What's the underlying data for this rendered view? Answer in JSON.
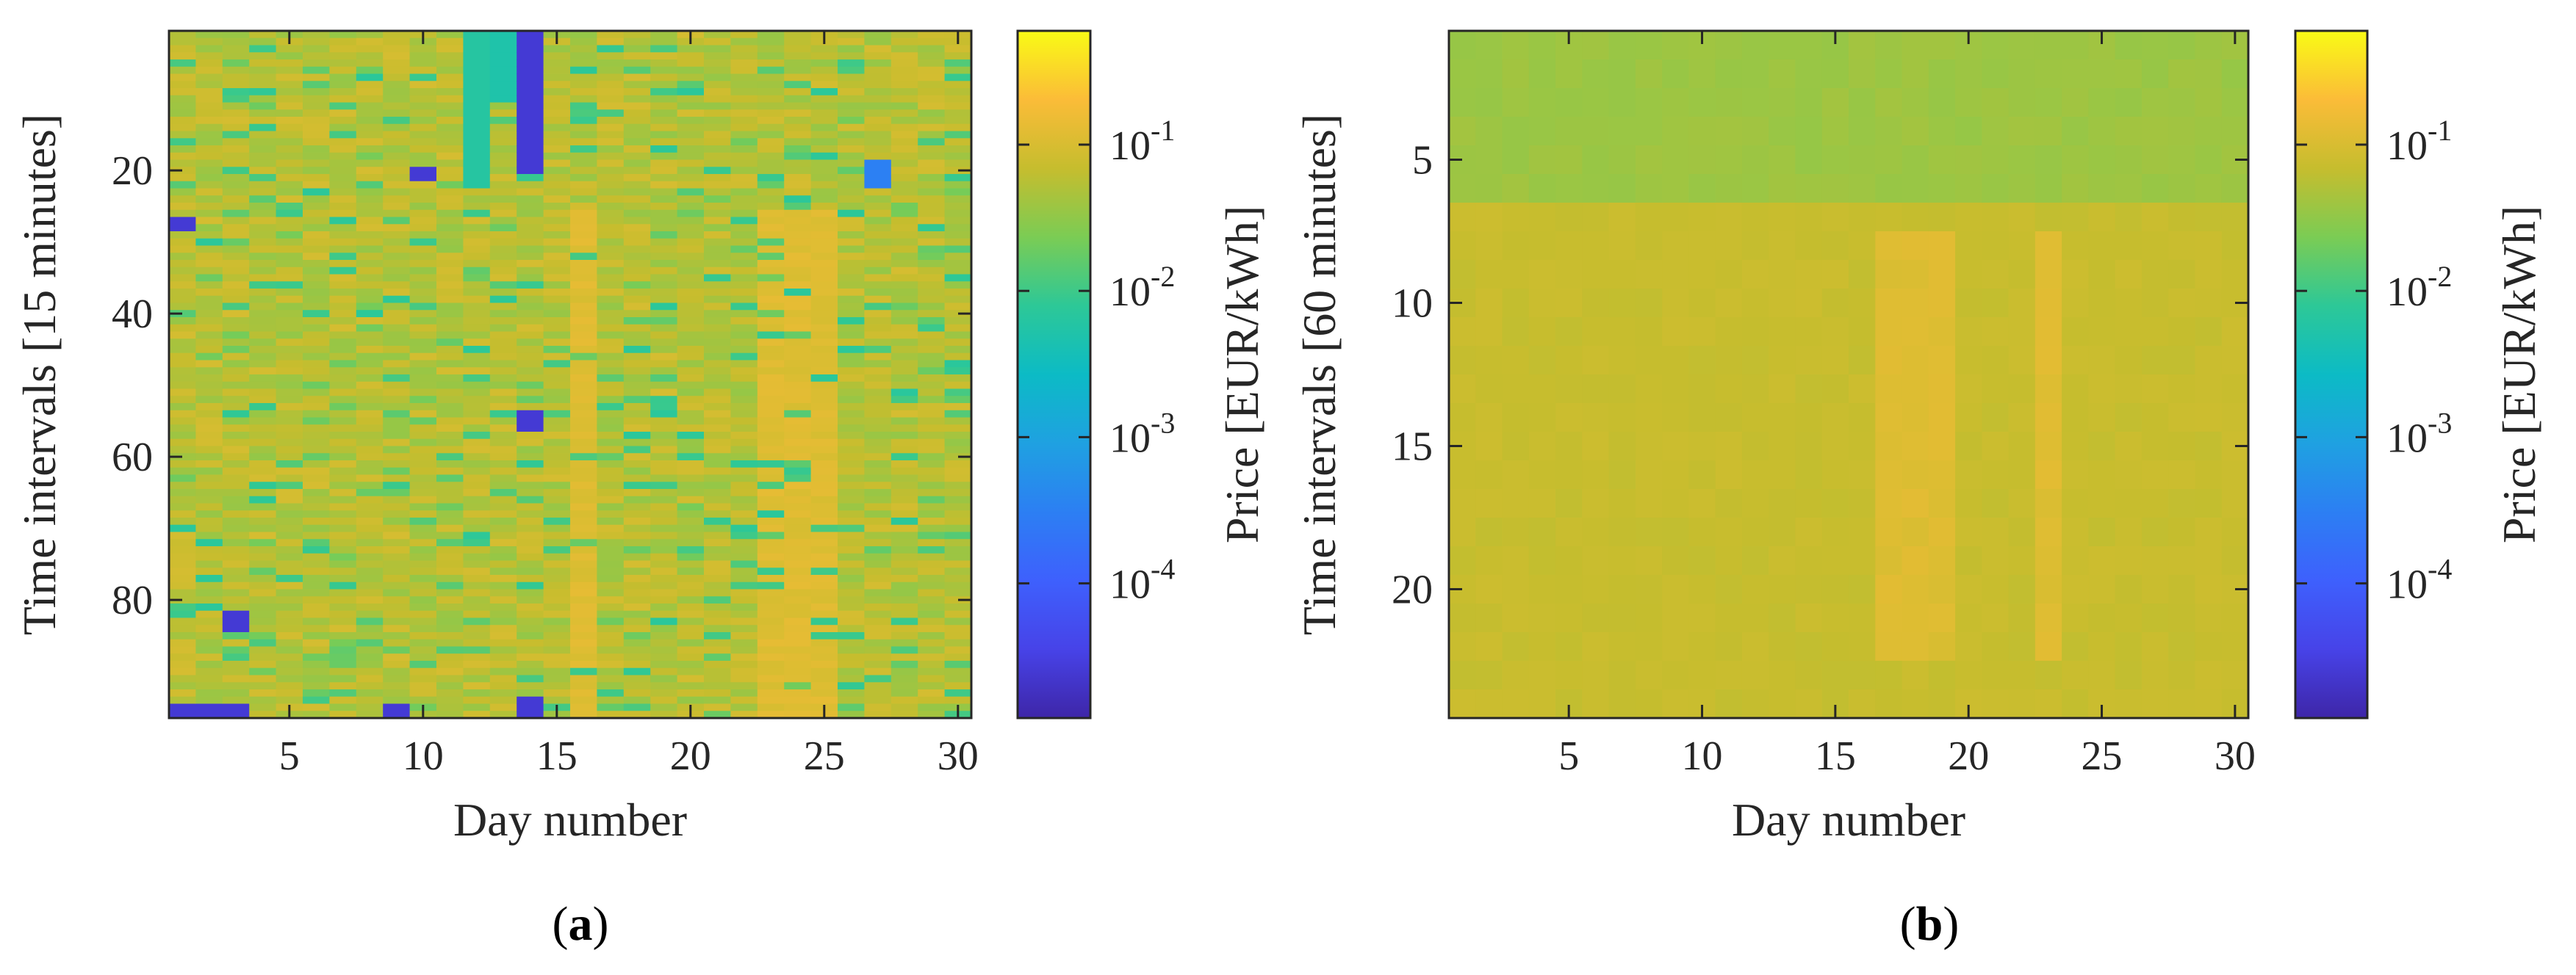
{
  "chart_data": [
    {
      "type": "heatmap",
      "panel_label": "a",
      "xlabel": "Day number",
      "ylabel": "Time intervals [15 minutes]",
      "x_range": [
        1,
        30
      ],
      "y_range": [
        1,
        96
      ],
      "x_ticks": [
        5,
        10,
        15,
        20,
        25,
        30
      ],
      "y_ticks": [
        20,
        40,
        60,
        80
      ],
      "n_days": 30,
      "n_intervals": 96,
      "colorbar": {
        "label": "Price [EUR/kWh]",
        "scale": "log",
        "range": [
          1.2e-05,
          0.6
        ],
        "ticks": [
          {
            "value": 0.1,
            "base": "10",
            "exp": "-1"
          },
          {
            "value": 0.01,
            "base": "10",
            "exp": "-2"
          },
          {
            "value": 0.001,
            "base": "10",
            "exp": "-3"
          },
          {
            "value": 0.0001,
            "base": "10",
            "exp": "-4"
          }
        ]
      },
      "price_level_log10": {
        "typical": -1.25,
        "high_price_days": [
          16,
          23,
          24,
          25
        ],
        "high_price_day_level": -0.95,
        "low_price_cells": [
          {
            "day": 14,
            "intervals": [
              1,
              20
            ],
            "log10": -4.6
          },
          {
            "day": 12,
            "intervals": [
              1,
              22
            ],
            "log10": -2.2
          },
          {
            "day": 13,
            "intervals": [
              1,
              10
            ],
            "log10": -2.3
          },
          {
            "day": 1,
            "intervals": [
              27,
              28
            ],
            "log10": -4.6
          },
          {
            "day": 3,
            "intervals": [
              82,
              84
            ],
            "log10": -4.6
          },
          {
            "day": 1,
            "intervals": [
              95,
              96
            ],
            "log10": -4.6
          },
          {
            "day": 2,
            "intervals": [
              95,
              96
            ],
            "log10": -4.6
          },
          {
            "day": 3,
            "intervals": [
              95,
              96
            ],
            "log10": -4.6
          },
          {
            "day": 14,
            "intervals": [
              94,
              96
            ],
            "log10": -4.6
          },
          {
            "day": 14,
            "intervals": [
              54,
              56
            ],
            "log10": -4.6
          },
          {
            "day": 27,
            "intervals": [
              19,
              22
            ],
            "log10": -3.5
          },
          {
            "day": 10,
            "intervals": [
              20,
              21
            ],
            "log10": -4.6
          },
          {
            "day": 9,
            "intervals": [
              95,
              96
            ],
            "log10": -4.6
          }
        ]
      }
    },
    {
      "type": "heatmap",
      "panel_label": "b",
      "xlabel": "Day number",
      "ylabel": "Time intervals [60 minutes]",
      "x_range": [
        1,
        30
      ],
      "y_range": [
        1,
        24
      ],
      "x_ticks": [
        5,
        10,
        15,
        20,
        25,
        30
      ],
      "y_ticks": [
        5,
        10,
        15,
        20
      ],
      "n_days": 30,
      "n_intervals": 24,
      "colorbar": {
        "label": "Price [EUR/kWh]",
        "scale": "log",
        "range": [
          1.2e-05,
          0.6
        ],
        "ticks": [
          {
            "value": 0.1,
            "base": "10",
            "exp": "-1"
          },
          {
            "value": 0.01,
            "base": "10",
            "exp": "-2"
          },
          {
            "value": 0.001,
            "base": "10",
            "exp": "-3"
          },
          {
            "value": 0.0001,
            "base": "10",
            "exp": "-4"
          }
        ]
      },
      "price_level_log10": {
        "night_hours": [
          1,
          6
        ],
        "night_level": -1.42,
        "day_level": -1.15,
        "high_price_days": [
          17,
          18,
          19,
          23
        ],
        "high_price_hours": [
          8,
          22
        ],
        "high_price_level": -0.95
      }
    }
  ]
}
